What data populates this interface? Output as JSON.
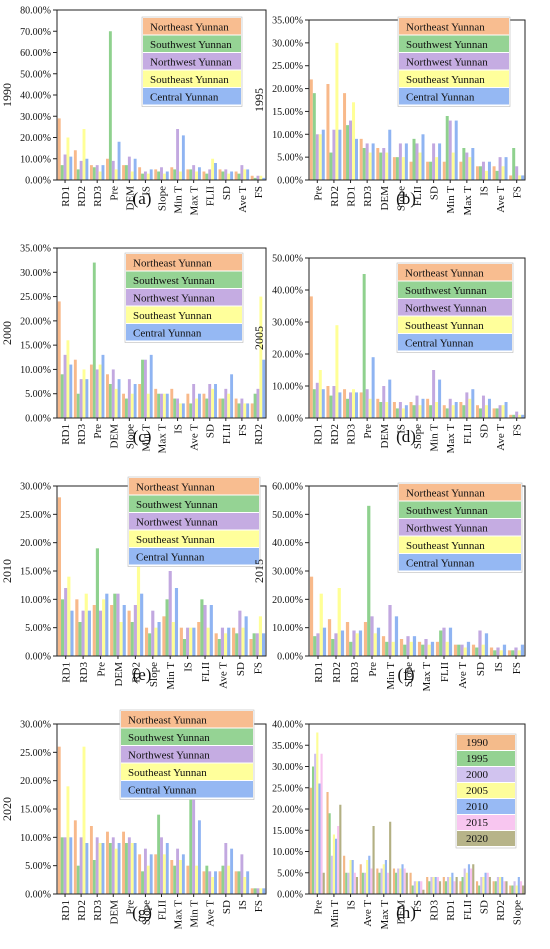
{
  "legend_regions": [
    "Northeast Yunnan",
    "Southwest Yunnan",
    "Northwest Yunnan",
    "Southeast Yunnan",
    "Central Yunnan"
  ],
  "legend_years": [
    "1990",
    "1995",
    "2000",
    "2005",
    "2010",
    "2015",
    "2020"
  ],
  "region_colors": [
    "#f8b98a",
    "#8fd18e",
    "#c2a8e0",
    "#ffff96",
    "#8fb4f2"
  ],
  "year_colors": [
    "#f3b785",
    "#8ed08c",
    "#cfc0ee",
    "#fdfd96",
    "#92b6f3",
    "#f8c3ef",
    "#b3b083"
  ],
  "chart_data": [
    {
      "type": "bar",
      "label": "(a)",
      "ylabel": "1990",
      "ylim": [
        0,
        0.8
      ],
      "yticks": [
        "0.00%",
        "10.00%",
        "20.00%",
        "30.00%",
        "40.00%",
        "50.00%",
        "60.00%",
        "70.00%",
        "80.00%"
      ],
      "categories": [
        "RD1",
        "RD2",
        "RD3",
        "Pre",
        "DEM",
        "IS",
        "Slope",
        "Min T",
        "Max T",
        "FLII",
        "SD",
        "Ave T",
        "FS"
      ],
      "series": [
        {
          "name": "Northeast Yunnan",
          "values": [
            0.29,
            0.14,
            0.07,
            0.1,
            0.07,
            0.06,
            0.05,
            0.06,
            0.05,
            0.04,
            0.05,
            0.04,
            0.02
          ]
        },
        {
          "name": "Southwest Yunnan",
          "values": [
            0.07,
            0.05,
            0.06,
            0.7,
            0.07,
            0.03,
            0.04,
            0.05,
            0.05,
            0.03,
            0.04,
            0.03,
            0.01
          ]
        },
        {
          "name": "Northwest Yunnan",
          "values": [
            0.12,
            0.09,
            0.07,
            0.09,
            0.11,
            0.04,
            0.06,
            0.24,
            0.07,
            0.05,
            0.05,
            0.07,
            0.02
          ]
        },
        {
          "name": "Southeast Yunnan",
          "values": [
            0.2,
            0.24,
            0.04,
            0.05,
            0.04,
            0.03,
            0.03,
            0.04,
            0.04,
            0.1,
            0.03,
            0.05,
            0.02
          ]
        },
        {
          "name": "Central Yunnan",
          "values": [
            0.11,
            0.1,
            0.07,
            0.18,
            0.1,
            0.05,
            0.04,
            0.21,
            0.06,
            0.08,
            0.04,
            0.05,
            0.01
          ]
        }
      ]
    },
    {
      "type": "bar",
      "label": "(b)",
      "ylabel": "1995",
      "ylim": [
        0,
        0.35
      ],
      "yticks": [
        "0.00%",
        "5.00%",
        "10.00%",
        "15.00%",
        "20.00%",
        "25.00%",
        "30.00%",
        "35.00%"
      ],
      "categories": [
        "Pre",
        "RD2",
        "RD1",
        "RD3",
        "DEM",
        "Slope",
        "FLII",
        "SD",
        "Min T",
        "Max T",
        "IS",
        "Ave T",
        "FS"
      ],
      "series": [
        {
          "name": "Northeast Yunnan",
          "values": [
            0.22,
            0.21,
            0.19,
            0.09,
            0.07,
            0.05,
            0.04,
            0.04,
            0.04,
            0.04,
            0.03,
            0.03,
            0.01
          ]
        },
        {
          "name": "Southwest Yunnan",
          "values": [
            0.19,
            0.06,
            0.12,
            0.07,
            0.06,
            0.05,
            0.09,
            0.04,
            0.14,
            0.07,
            0.03,
            0.02,
            0.07
          ]
        },
        {
          "name": "Northwest Yunnan",
          "values": [
            0.1,
            0.11,
            0.13,
            0.08,
            0.07,
            0.08,
            0.08,
            0.08,
            0.13,
            0.06,
            0.04,
            0.05,
            0.03
          ]
        },
        {
          "name": "Southeast Yunnan",
          "values": [
            0.1,
            0.3,
            0.17,
            0.06,
            0.06,
            0.05,
            0.06,
            0.05,
            0.06,
            0.05,
            0.02,
            0.03,
            0.01
          ]
        },
        {
          "name": "Central Yunnan",
          "values": [
            0.11,
            0.11,
            0.09,
            0.08,
            0.11,
            0.08,
            0.1,
            0.08,
            0.13,
            0.07,
            0.04,
            0.05,
            0.01
          ]
        }
      ]
    },
    {
      "type": "bar",
      "label": "(c)",
      "ylabel": "2000",
      "ylim": [
        0,
        0.35
      ],
      "yticks": [
        "0.00%",
        "5.00%",
        "10.00%",
        "15.00%",
        "20.00%",
        "25.00%",
        "30.00%",
        "35.00%"
      ],
      "categories": [
        "RD1",
        "RD3",
        "Pre",
        "DEM",
        "Slope",
        "Min T",
        "Max T",
        "IS",
        "Ave T",
        "SD",
        "FLII",
        "FS",
        "RD2"
      ],
      "series": [
        {
          "name": "Northeast Yunnan",
          "values": [
            0.24,
            0.12,
            0.11,
            0.09,
            0.05,
            0.07,
            0.06,
            0.06,
            0.05,
            0.05,
            0.04,
            0.04,
            0.03
          ]
        },
        {
          "name": "Southwest Yunnan",
          "values": [
            0.09,
            0.05,
            0.32,
            0.07,
            0.04,
            0.12,
            0.05,
            0.04,
            0.03,
            0.04,
            0.04,
            0.03,
            0.05
          ]
        },
        {
          "name": "Northwest Yunnan",
          "values": [
            0.13,
            0.08,
            0.1,
            0.1,
            0.08,
            0.12,
            0.05,
            0.04,
            0.07,
            0.07,
            0.06,
            0.04,
            0.06
          ]
        },
        {
          "name": "Southeast Yunnan",
          "values": [
            0.16,
            0.1,
            0.11,
            0.06,
            0.05,
            0.05,
            0.05,
            0.03,
            0.04,
            0.06,
            0.05,
            0.03,
            0.25
          ]
        },
        {
          "name": "Central Yunnan",
          "values": [
            0.11,
            0.08,
            0.13,
            0.08,
            0.07,
            0.13,
            0.05,
            0.03,
            0.05,
            0.07,
            0.09,
            0.03,
            0.12
          ]
        }
      ]
    },
    {
      "type": "bar",
      "label": "(d)",
      "ylabel": "2005",
      "ylim": [
        0,
        0.5
      ],
      "yticks": [
        "0.00%",
        "10.00%",
        "20.00%",
        "30.00%",
        "40.00%",
        "50.00%"
      ],
      "categories": [
        "RD1",
        "RD2",
        "RD3",
        "Pre",
        "DEM",
        "IS",
        "Slope",
        "Min T",
        "Max T",
        "FLII",
        "SD",
        "Ave T",
        "FS"
      ],
      "series": [
        {
          "name": "Northeast Yunnan",
          "values": [
            0.38,
            0.1,
            0.09,
            0.08,
            0.06,
            0.05,
            0.05,
            0.06,
            0.04,
            0.05,
            0.04,
            0.03,
            0.01
          ]
        },
        {
          "name": "Southwest Yunnan",
          "values": [
            0.09,
            0.07,
            0.06,
            0.45,
            0.05,
            0.03,
            0.04,
            0.04,
            0.03,
            0.04,
            0.03,
            0.03,
            0.01
          ]
        },
        {
          "name": "Northwest Yunnan",
          "values": [
            0.11,
            0.1,
            0.08,
            0.09,
            0.1,
            0.05,
            0.07,
            0.15,
            0.06,
            0.08,
            0.07,
            0.04,
            0.02
          ]
        },
        {
          "name": "Southeast Yunnan",
          "values": [
            0.15,
            0.29,
            0.09,
            0.06,
            0.05,
            0.03,
            0.04,
            0.05,
            0.04,
            0.06,
            0.04,
            0.04,
            0.01
          ]
        },
        {
          "name": "Central Yunnan",
          "values": [
            0.09,
            0.08,
            0.08,
            0.19,
            0.12,
            0.04,
            0.06,
            0.12,
            0.05,
            0.09,
            0.06,
            0.05,
            0.01
          ]
        }
      ]
    },
    {
      "type": "bar",
      "label": "(e)",
      "ylabel": "2010",
      "ylim": [
        0,
        0.3
      ],
      "yticks": [
        "0.00%",
        "5.00%",
        "10.00%",
        "15.00%",
        "20.00%",
        "25.00%",
        "30.00%"
      ],
      "categories": [
        "RD1",
        "RD3",
        "Pre",
        "DEM",
        "RD2",
        "Slope",
        "Min T",
        "IS",
        "FLII",
        "Ave T",
        "SD",
        "FS"
      ],
      "series": [
        {
          "name": "Northeast Yunnan",
          "values": [
            0.28,
            0.1,
            0.09,
            0.09,
            0.08,
            0.05,
            0.07,
            0.05,
            0.06,
            0.04,
            0.05,
            0.03
          ]
        },
        {
          "name": "Southwest Yunnan",
          "values": [
            0.1,
            0.06,
            0.19,
            0.11,
            0.06,
            0.04,
            0.1,
            0.03,
            0.1,
            0.03,
            0.04,
            0.04
          ]
        },
        {
          "name": "Northwest Yunnan",
          "values": [
            0.12,
            0.08,
            0.08,
            0.11,
            0.09,
            0.08,
            0.15,
            0.05,
            0.09,
            0.05,
            0.08,
            0.04
          ]
        },
        {
          "name": "Southeast Yunnan",
          "values": [
            0.14,
            0.11,
            0.1,
            0.06,
            0.26,
            0.05,
            0.06,
            0.05,
            0.05,
            0.04,
            0.05,
            0.07
          ]
        },
        {
          "name": "Central Yunnan",
          "values": [
            0.08,
            0.08,
            0.11,
            0.09,
            0.11,
            0.06,
            0.12,
            0.05,
            0.09,
            0.05,
            0.07,
            0.04
          ]
        }
      ]
    },
    {
      "type": "bar",
      "label": "(f)",
      "ylabel": "2015",
      "ylim": [
        0,
        0.6
      ],
      "yticks": [
        "0.00%",
        "10.00%",
        "20.00%",
        "30.00%",
        "40.00%",
        "50.00%",
        "60.00%"
      ],
      "categories": [
        "RD1",
        "RD2",
        "RD3",
        "Pre",
        "Min T",
        "Slope",
        "Max T",
        "FLII",
        "Ave T",
        "SD",
        "IS",
        "FS"
      ],
      "series": [
        {
          "name": "Northeast Yunnan",
          "values": [
            0.28,
            0.13,
            0.12,
            0.12,
            0.07,
            0.06,
            0.05,
            0.05,
            0.04,
            0.04,
            0.03,
            0.02
          ]
        },
        {
          "name": "Southwest Yunnan",
          "values": [
            0.07,
            0.06,
            0.05,
            0.53,
            0.05,
            0.04,
            0.04,
            0.09,
            0.04,
            0.03,
            0.02,
            0.02
          ]
        },
        {
          "name": "Northwest Yunnan",
          "values": [
            0.08,
            0.08,
            0.09,
            0.14,
            0.18,
            0.07,
            0.06,
            0.1,
            0.04,
            0.09,
            0.03,
            0.03
          ]
        },
        {
          "name": "Southeast Yunnan",
          "values": [
            0.22,
            0.24,
            0.08,
            0.08,
            0.05,
            0.05,
            0.04,
            0.05,
            0.03,
            0.04,
            0.02,
            0.02
          ]
        },
        {
          "name": "Central Yunnan",
          "values": [
            0.1,
            0.09,
            0.09,
            0.1,
            0.14,
            0.07,
            0.05,
            0.1,
            0.05,
            0.08,
            0.04,
            0.04
          ]
        }
      ]
    },
    {
      "type": "bar",
      "label": "(g)",
      "ylabel": "2020",
      "ylim": [
        0,
        0.3
      ],
      "yticks": [
        "0.00%",
        "5.00%",
        "10.00%",
        "15.00%",
        "20.00%",
        "25.00%",
        "30.00%"
      ],
      "categories": [
        "RD1",
        "RD2",
        "RD3",
        "DEM",
        "Pre",
        "Slope",
        "FLII",
        "Max T",
        "Min T",
        "Ave T",
        "SD",
        "IS",
        "FS"
      ],
      "series": [
        {
          "name": "Northeast Yunnan",
          "values": [
            0.26,
            0.13,
            0.12,
            0.11,
            0.11,
            0.07,
            0.07,
            0.06,
            0.05,
            0.04,
            0.04,
            0.04,
            0.01
          ]
        },
        {
          "name": "Southwest Yunnan",
          "values": [
            0.1,
            0.05,
            0.06,
            0.09,
            0.09,
            0.04,
            0.14,
            0.05,
            0.18,
            0.05,
            0.05,
            0.04,
            0.01
          ]
        },
        {
          "name": "Northwest Yunnan",
          "values": [
            0.1,
            0.1,
            0.1,
            0.1,
            0.1,
            0.08,
            0.1,
            0.08,
            0.18,
            0.04,
            0.09,
            0.07,
            0.01
          ]
        },
        {
          "name": "Southeast Yunnan",
          "values": [
            0.19,
            0.26,
            0.09,
            0.08,
            0.09,
            0.05,
            0.07,
            0.06,
            0.05,
            0.03,
            0.05,
            0.03,
            0.01
          ]
        },
        {
          "name": "Central Yunnan",
          "values": [
            0.1,
            0.09,
            0.09,
            0.09,
            0.09,
            0.07,
            0.09,
            0.07,
            0.13,
            0.04,
            0.08,
            0.04,
            0.01
          ]
        }
      ]
    },
    {
      "type": "bar",
      "label": "(h)",
      "ylim": [
        0,
        0.4
      ],
      "yticks": [
        "0.00%",
        "5.00%",
        "10.00%",
        "15.00%",
        "20.00%",
        "25.00%",
        "30.00%",
        "35.00%",
        "40.00%"
      ],
      "categories": [
        "Pre",
        "Min T",
        "IS",
        "Ave T",
        "Max T",
        "DEM",
        "FS",
        "RD3",
        "RD1",
        "FLII",
        "SD",
        "RD2",
        "Slope"
      ],
      "series": [
        {
          "name": "1990",
          "values": [
            0.25,
            0.24,
            0.09,
            0.07,
            0.06,
            0.06,
            0.05,
            0.04,
            0.04,
            0.03,
            0.03,
            0.03,
            0.02
          ]
        },
        {
          "name": "1995",
          "values": [
            0.3,
            0.19,
            0.05,
            0.05,
            0.05,
            0.05,
            0.02,
            0.03,
            0.03,
            0.04,
            0.02,
            0.03,
            0.02
          ]
        },
        {
          "name": "2000",
          "values": [
            0.33,
            0.09,
            0.05,
            0.05,
            0.06,
            0.06,
            0.03,
            0.04,
            0.04,
            0.06,
            0.04,
            0.04,
            0.03
          ]
        },
        {
          "name": "2005",
          "values": [
            0.38,
            0.14,
            0.08,
            0.08,
            0.07,
            0.06,
            0.03,
            0.04,
            0.04,
            0.05,
            0.04,
            0.04,
            0.02
          ]
        },
        {
          "name": "2010",
          "values": [
            0.26,
            0.13,
            0.08,
            0.09,
            0.08,
            0.07,
            0.03,
            0.04,
            0.05,
            0.07,
            0.05,
            0.04,
            0.04
          ]
        },
        {
          "name": "2015",
          "values": [
            0.33,
            0.16,
            0.05,
            0.06,
            0.05,
            0.06,
            0.03,
            0.04,
            0.03,
            0.06,
            0.05,
            0.03,
            0.03
          ]
        },
        {
          "name": "2020",
          "values": [
            0.05,
            0.21,
            0.04,
            0.16,
            0.17,
            0.05,
            0.01,
            0.03,
            0.04,
            0.07,
            0.04,
            0.03,
            0.02
          ]
        }
      ]
    }
  ]
}
